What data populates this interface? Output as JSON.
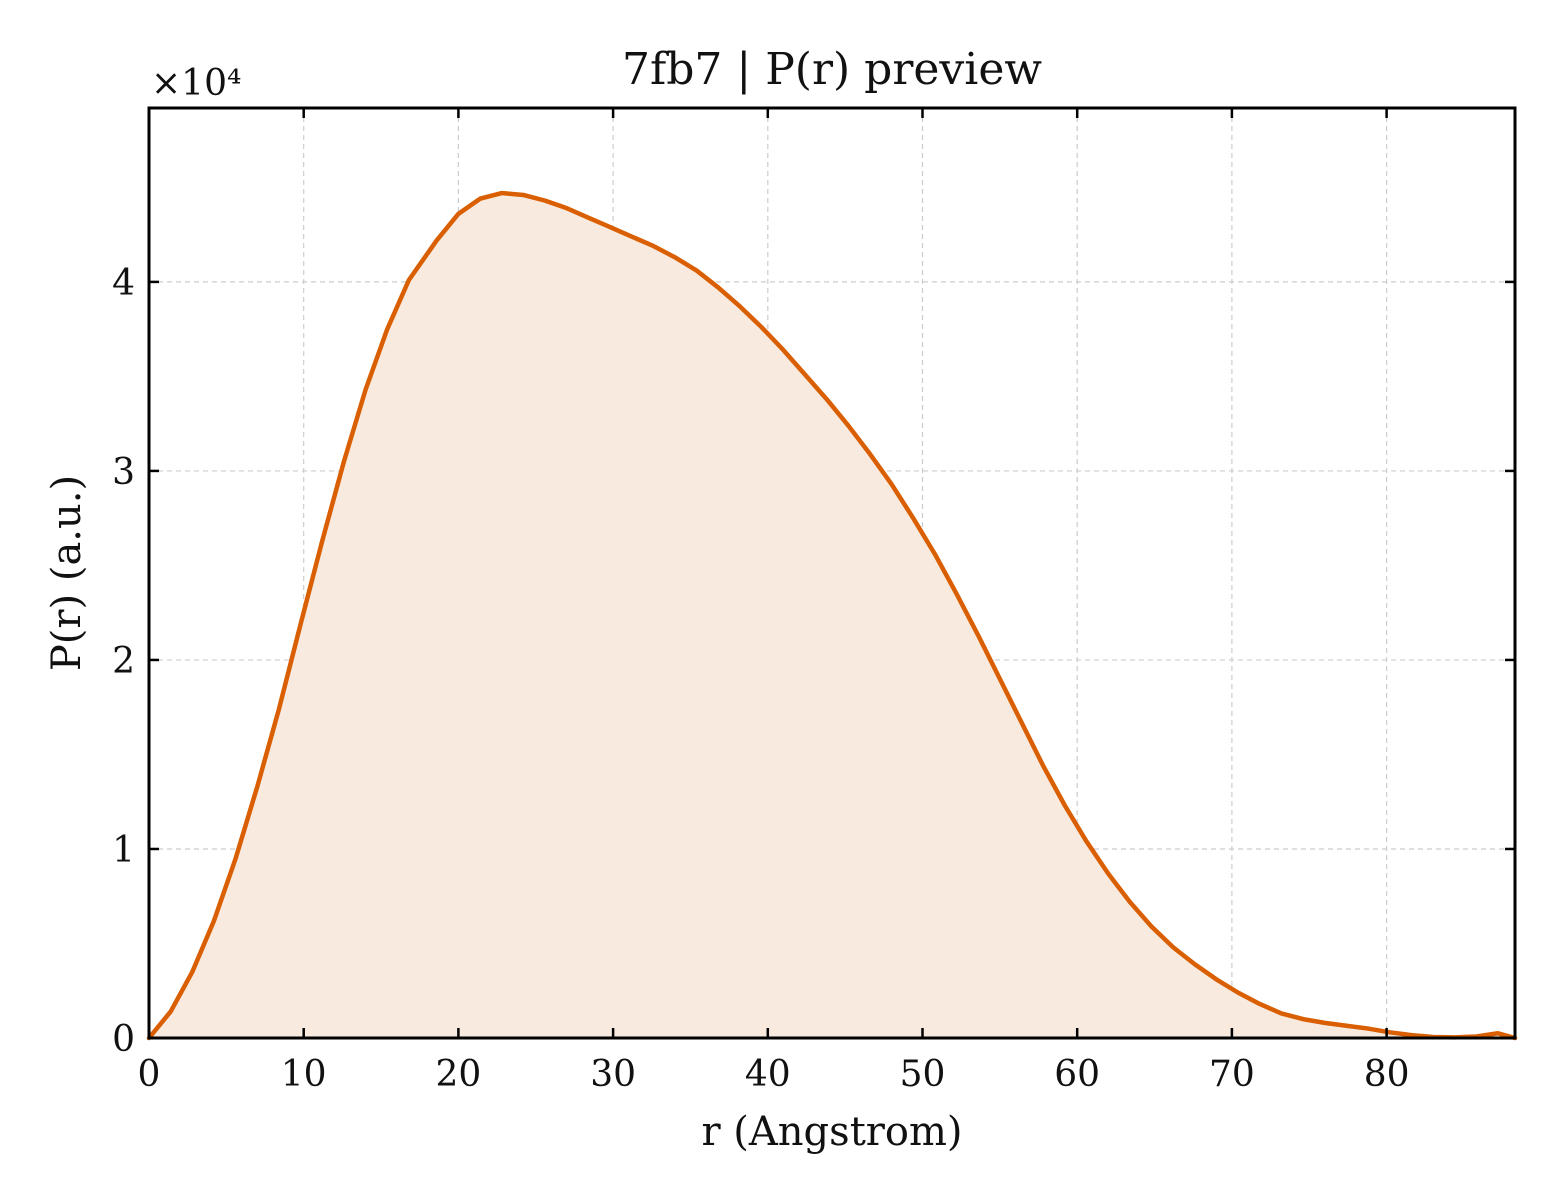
{
  "chart_data": {
    "type": "area",
    "title": "7fb7 | P(r) preview",
    "xlabel": "r (Angstrom)",
    "ylabel": "P(r) (a.u.)",
    "y_multiplier_label": "×10⁴",
    "y_scale_factor": 10000,
    "xlim": [
      0,
      88.3
    ],
    "ylim": [
      0,
      49200
    ],
    "x_ticks": [
      0,
      10,
      20,
      30,
      40,
      50,
      60,
      70,
      80
    ],
    "y_ticks": [
      0,
      10000,
      20000,
      30000,
      40000
    ],
    "x_tick_labels": [
      "0",
      "10",
      "20",
      "30",
      "40",
      "50",
      "60",
      "70",
      "80"
    ],
    "y_tick_labels": [
      "0",
      "1",
      "2",
      "3",
      "4"
    ],
    "grid": true,
    "line_color": "#d95f02",
    "fill_color": "#f9eadf",
    "series": [
      {
        "x": [
          0,
          1.4,
          2.8,
          4.2,
          5.6,
          7.0,
          8.4,
          9.8,
          11.2,
          12.6,
          14.0,
          15.4,
          16.8,
          18.6,
          20.0,
          21.4,
          22.8,
          24.2,
          25.6,
          27.0,
          28.4,
          29.8,
          31.2,
          32.6,
          34.0,
          35.4,
          36.8,
          38.2,
          39.6,
          41.0,
          42.4,
          43.8,
          45.2,
          46.6,
          48.0,
          49.4,
          50.8,
          52.2,
          53.6,
          55.0,
          56.4,
          57.8,
          59.2,
          60.6,
          62.0,
          63.4,
          64.8,
          66.2,
          67.6,
          69.0,
          70.4,
          71.8,
          73.2,
          74.6,
          76.0,
          77.4,
          78.8,
          80.2,
          81.6,
          83.0,
          84.4,
          85.8,
          87.2,
          88.3
        ],
        "y": [
          0,
          1400,
          3500,
          6200,
          9500,
          13300,
          17400,
          21900,
          26300,
          30500,
          34300,
          37500,
          40100,
          42200,
          43600,
          44400,
          44700,
          44600,
          44300,
          43900,
          43400,
          42900,
          42400,
          41900,
          41300,
          40600,
          39700,
          38700,
          37600,
          36400,
          35100,
          33800,
          32400,
          30900,
          29300,
          27500,
          25600,
          23500,
          21300,
          19000,
          16700,
          14400,
          12300,
          10400,
          8700,
          7200,
          5900,
          4800,
          3900,
          3100,
          2400,
          1800,
          1300,
          1000,
          800,
          650,
          500,
          300,
          150,
          50,
          30,
          80,
          250,
          0
        ]
      }
    ]
  }
}
